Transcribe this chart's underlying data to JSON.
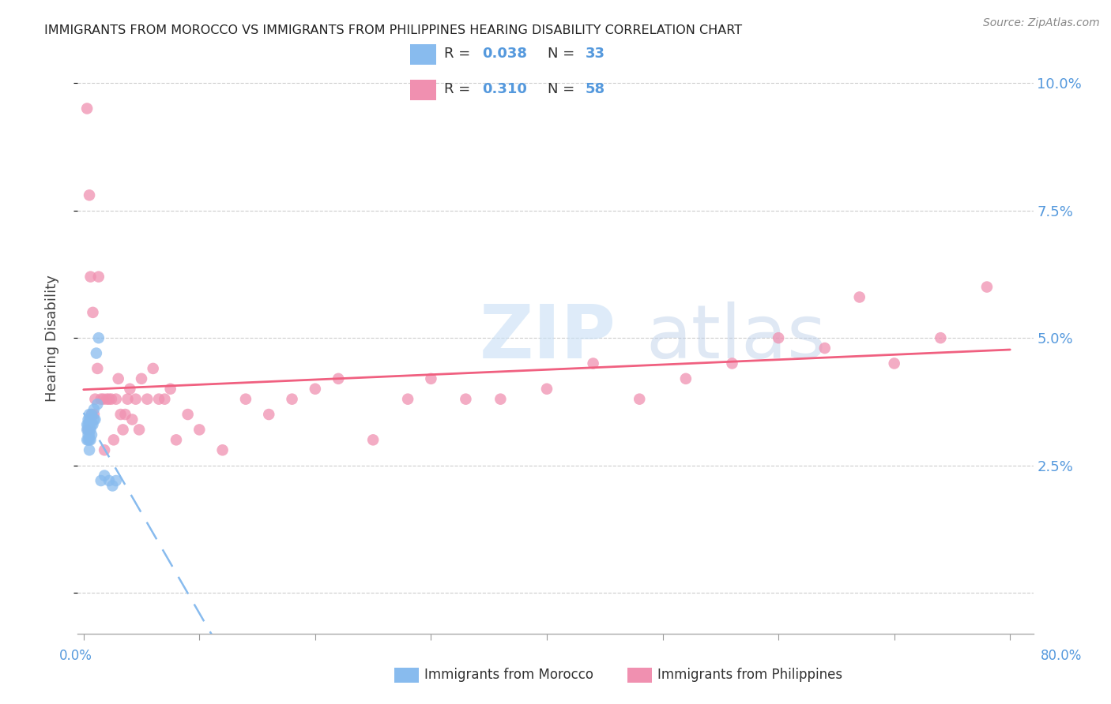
{
  "title": "IMMIGRANTS FROM MOROCCO VS IMMIGRANTS FROM PHILIPPINES HEARING DISABILITY CORRELATION CHART",
  "source": "Source: ZipAtlas.com",
  "ylabel": "Hearing Disability",
  "yticks": [
    0.0,
    0.025,
    0.05,
    0.075,
    0.1
  ],
  "ytick_labels": [
    "",
    "2.5%",
    "5.0%",
    "7.5%",
    "10.0%"
  ],
  "xticks": [
    0.0,
    0.1,
    0.2,
    0.3,
    0.4,
    0.5,
    0.6,
    0.7,
    0.8
  ],
  "xlim": [
    -0.005,
    0.82
  ],
  "ylim": [
    -0.008,
    0.108
  ],
  "color_morocco": "#88BBEE",
  "color_philippines": "#F090B0",
  "color_morocco_line": "#88BBEE",
  "color_philippines_line": "#F06080",
  "color_axis_labels": "#5599DD",
  "morocco_x": [
    0.003,
    0.003,
    0.003,
    0.004,
    0.004,
    0.004,
    0.004,
    0.004,
    0.005,
    0.005,
    0.005,
    0.005,
    0.005,
    0.005,
    0.005,
    0.006,
    0.006,
    0.006,
    0.007,
    0.007,
    0.007,
    0.008,
    0.009,
    0.009,
    0.01,
    0.011,
    0.012,
    0.013,
    0.015,
    0.018,
    0.022,
    0.025,
    0.028
  ],
  "morocco_y": [
    0.03,
    0.032,
    0.033,
    0.03,
    0.031,
    0.032,
    0.033,
    0.034,
    0.028,
    0.03,
    0.031,
    0.032,
    0.033,
    0.034,
    0.035,
    0.03,
    0.032,
    0.034,
    0.031,
    0.033,
    0.035,
    0.033,
    0.034,
    0.036,
    0.034,
    0.047,
    0.037,
    0.05,
    0.022,
    0.023,
    0.022,
    0.021,
    0.022
  ],
  "philippines_x": [
    0.003,
    0.004,
    0.005,
    0.006,
    0.007,
    0.008,
    0.009,
    0.01,
    0.012,
    0.013,
    0.015,
    0.017,
    0.018,
    0.02,
    0.022,
    0.024,
    0.026,
    0.028,
    0.03,
    0.032,
    0.034,
    0.036,
    0.038,
    0.04,
    0.042,
    0.045,
    0.048,
    0.05,
    0.055,
    0.06,
    0.065,
    0.07,
    0.075,
    0.08,
    0.09,
    0.1,
    0.12,
    0.14,
    0.16,
    0.18,
    0.2,
    0.22,
    0.25,
    0.28,
    0.3,
    0.33,
    0.36,
    0.4,
    0.44,
    0.48,
    0.52,
    0.56,
    0.6,
    0.64,
    0.67,
    0.7,
    0.74,
    0.78
  ],
  "philippines_y": [
    0.095,
    0.032,
    0.078,
    0.062,
    0.035,
    0.055,
    0.035,
    0.038,
    0.044,
    0.062,
    0.038,
    0.038,
    0.028,
    0.038,
    0.038,
    0.038,
    0.03,
    0.038,
    0.042,
    0.035,
    0.032,
    0.035,
    0.038,
    0.04,
    0.034,
    0.038,
    0.032,
    0.042,
    0.038,
    0.044,
    0.038,
    0.038,
    0.04,
    0.03,
    0.035,
    0.032,
    0.028,
    0.038,
    0.035,
    0.038,
    0.04,
    0.042,
    0.03,
    0.038,
    0.042,
    0.038,
    0.038,
    0.04,
    0.045,
    0.038,
    0.042,
    0.045,
    0.05,
    0.048,
    0.058,
    0.045,
    0.05,
    0.06
  ]
}
